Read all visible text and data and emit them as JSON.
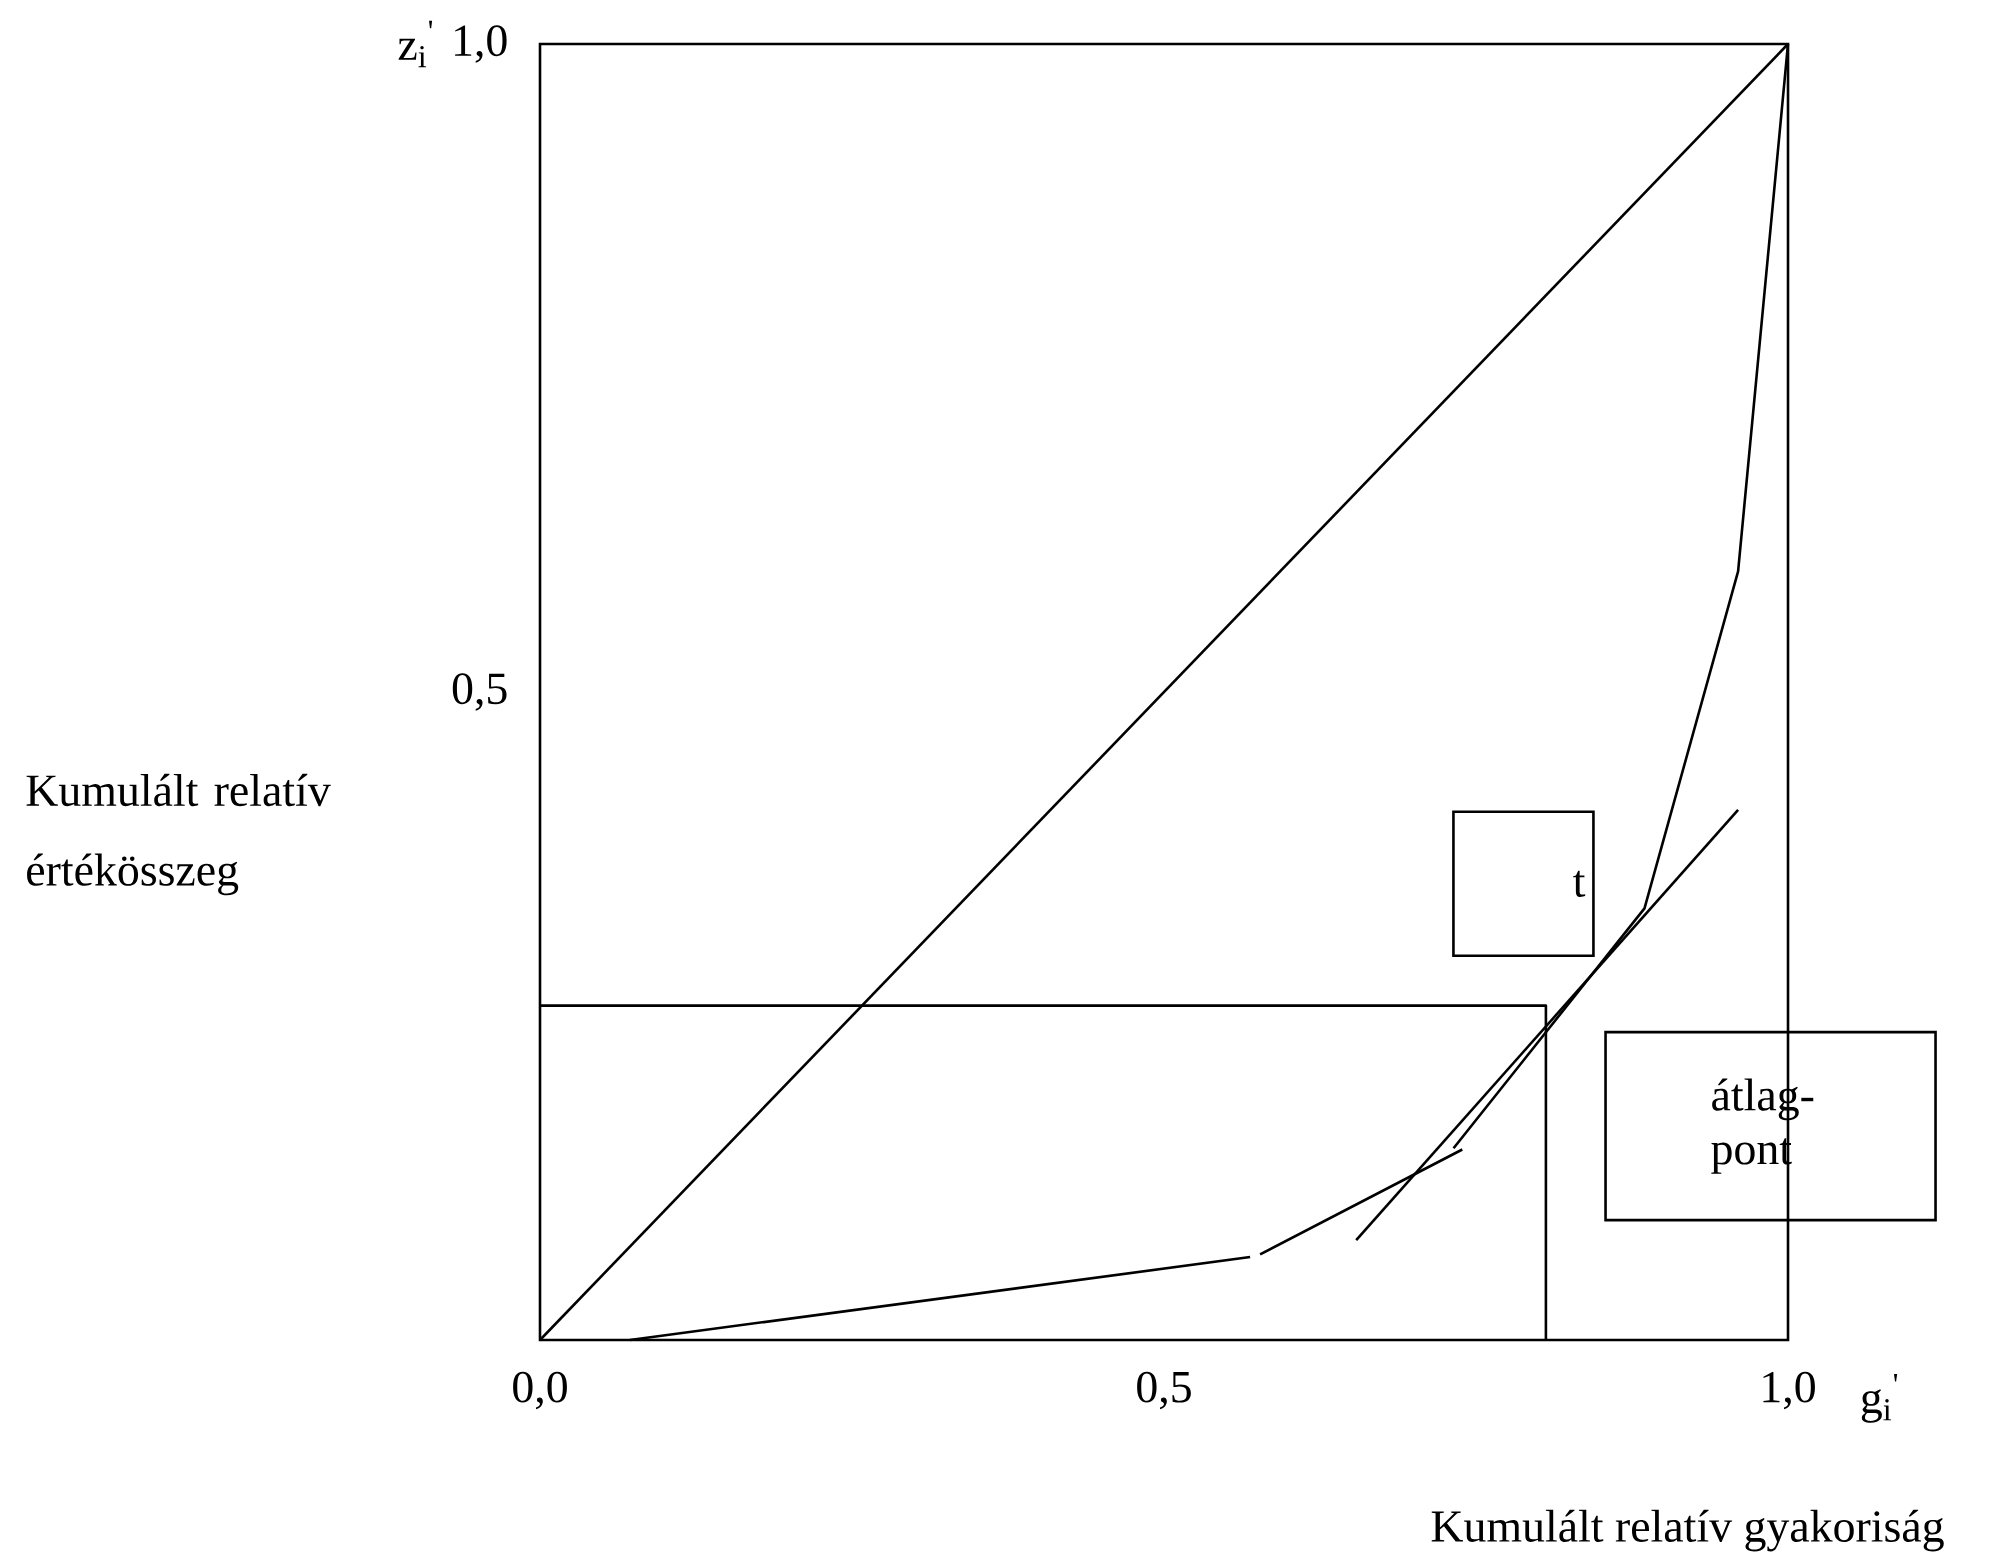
{
  "chart_data": {
    "type": "line",
    "xlabel": "Kumulált relatív gyakoriság",
    "ylabel": "Kumulált relatív értékösszeg",
    "annotations": [
      "t",
      "átlag-pont",
      "z$_{i}$$^{'}$",
      "g$_{i}$$^{'}$"
    ],
    "xlim": [
      0,
      1
    ],
    "ylim": [
      0,
      1
    ],
    "xticks": [
      {
        "value": 0,
        "label": "0,0"
      },
      {
        "value": 0.5,
        "label": "0,5"
      },
      {
        "value": 1,
        "label": "1,0"
      }
    ],
    "yticks": [
      {
        "value": 0.5,
        "label": "0,5"
      },
      {
        "value": 1,
        "label": "1,0"
      }
    ],
    "grid": false,
    "marker": "none",
    "line_style": "solid",
    "series": [
      {
        "color": "#000000",
        "x": [
          0,
          1
        ],
        "values": [
          0,
          1
        ]
      },
      {
        "color": "#000000",
        "x": [
          0.072,
          0.569,
          0.573,
          0.577,
          0.739,
          0.736,
          0.732,
          0.885,
          0.96,
          1
        ],
        "values": [
          0,
          0.064,
          null,
          0.066,
          0.147,
          null,
          0.148,
          0.333,
          0.593,
          1
        ]
      },
      {
        "color": "#000000",
        "x": [
          0.654,
          0.96
        ],
        "values": [
          0.077,
          0.409
        ]
      },
      {
        "color": "#000000",
        "x": [
          0,
          0.806,
          0.806
        ],
        "values": [
          0.258,
          0.258,
          0
        ]
      }
    ]
  }
}
